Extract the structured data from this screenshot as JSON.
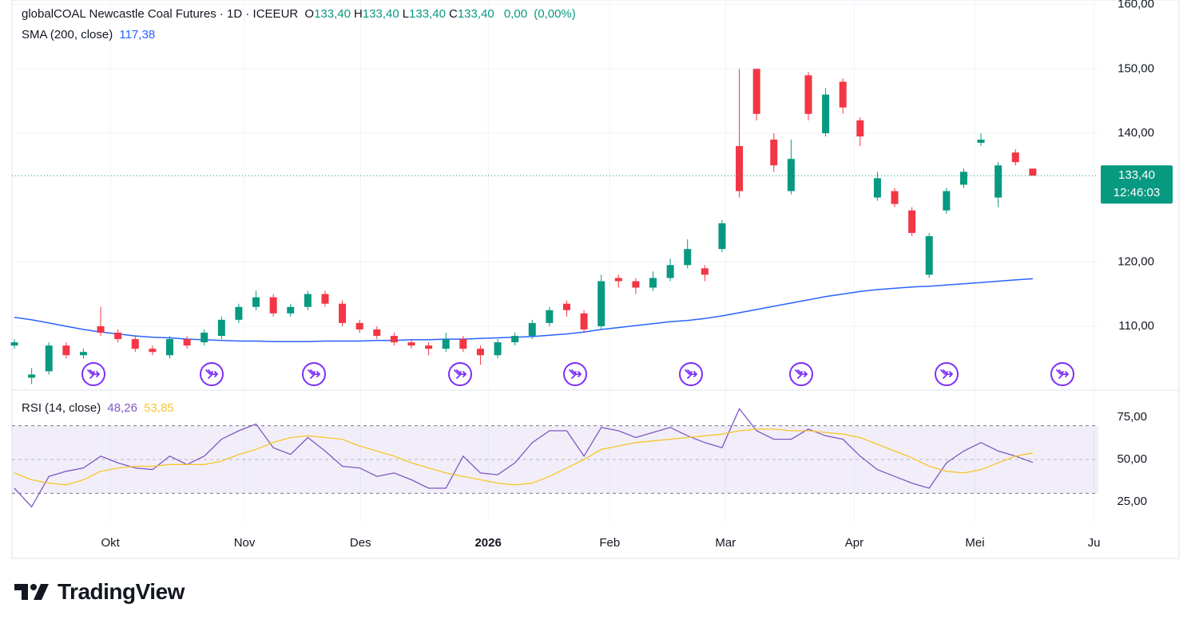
{
  "chart_data": [
    {
      "type": "candlestick",
      "title": "globalCOAL Newcastle Coal Futures · 1D · ICEEUR",
      "ohlc_legend": [
        {
          "key": "O",
          "value": 133.4,
          "label": "133,40"
        },
        {
          "key": "H",
          "value": 133.4,
          "label": "133,40"
        },
        {
          "key": "L",
          "value": 133.4,
          "label": "133,40"
        },
        {
          "key": "C",
          "value": 133.4,
          "label": "133,40"
        }
      ],
      "change": {
        "value": 0,
        "label": "0,00"
      },
      "change_pct": {
        "value": 0,
        "label": "(0,00%)"
      },
      "up_color": "#089981",
      "down_color": "#f23645",
      "open": [
        107,
        102,
        103,
        107,
        105.5,
        110,
        109,
        108,
        106.5,
        105.5,
        108,
        107.5,
        108.5,
        111,
        113,
        114.5,
        112,
        113,
        115,
        113.5,
        110.5,
        109.5,
        108.5,
        107.5,
        107,
        106.5,
        108,
        106.5,
        105.5,
        107.5,
        108.5,
        110.5,
        113.5,
        112,
        110,
        117.5,
        117,
        116,
        117.5,
        119.5,
        119,
        122,
        138,
        150,
        139,
        131,
        149,
        140,
        148,
        142,
        130,
        131,
        128,
        118,
        128,
        132,
        138.5,
        130,
        137,
        134.5
      ],
      "high": [
        108,
        103.5,
        107.5,
        107.5,
        106.5,
        113,
        109.5,
        108.5,
        107,
        108.5,
        108.5,
        109.5,
        111.5,
        113.5,
        115.5,
        115,
        113.5,
        115.5,
        115.5,
        114,
        111,
        110,
        109,
        108,
        107.5,
        109,
        108.5,
        107,
        108,
        109,
        111,
        113,
        114,
        112.5,
        118,
        118,
        117.5,
        118.5,
        120.5,
        123.5,
        119.5,
        126.5,
        150,
        150,
        140,
        139,
        149.5,
        147,
        148.5,
        142.5,
        134,
        131.5,
        128.5,
        124.5,
        131.5,
        134.5,
        140,
        135.5,
        137.5,
        134.5
      ],
      "low": [
        106.5,
        101,
        102.5,
        105,
        105,
        108.5,
        107.5,
        106,
        105.5,
        105,
        106.5,
        107,
        108,
        110.5,
        112.5,
        111.5,
        111.5,
        112.5,
        113,
        110,
        109,
        108,
        107,
        106.5,
        105.5,
        106,
        106,
        104,
        105,
        107,
        108,
        110,
        111.5,
        109,
        109.5,
        116,
        115,
        115.5,
        117,
        119,
        117,
        121.5,
        130,
        142,
        134,
        130.5,
        142,
        139.5,
        143,
        138,
        129.5,
        128.5,
        124,
        117.5,
        127.5,
        131.5,
        138,
        128.5,
        135,
        133.4
      ],
      "close": [
        107.5,
        102.5,
        107,
        105.5,
        106,
        109,
        108,
        106.5,
        106,
        108,
        107,
        109,
        111,
        113,
        114.5,
        112,
        113,
        115,
        113.5,
        110.5,
        109.5,
        108.5,
        107.5,
        107,
        106.5,
        108,
        106.5,
        105.5,
        107.5,
        108.5,
        110.5,
        112.5,
        112.5,
        109.5,
        117,
        117,
        116,
        117.5,
        119.5,
        122,
        118,
        126,
        131,
        143,
        135,
        136,
        143,
        146,
        144,
        139.5,
        133,
        129,
        124.5,
        124,
        131,
        134,
        139,
        135,
        135.5,
        133.4
      ],
      "overlay": {
        "name": "SMA (200, close)",
        "color": "#2962ff",
        "last": {
          "value": 117.38,
          "label": "117,38"
        },
        "values": [
          111.4,
          111,
          110.5,
          110,
          109.5,
          109.1,
          108.8,
          108.5,
          108.3,
          108.2,
          108,
          107.9,
          107.8,
          107.7,
          107.7,
          107.6,
          107.6,
          107.6,
          107.7,
          107.7,
          107.7,
          107.8,
          107.8,
          107.9,
          107.9,
          108,
          108,
          108.1,
          108.2,
          108.3,
          108.4,
          108.6,
          108.8,
          109.1,
          109.5,
          109.8,
          110.1,
          110.4,
          110.7,
          110.9,
          111.2,
          111.6,
          112.1,
          112.6,
          113.1,
          113.6,
          114.1,
          114.6,
          115,
          115.4,
          115.7,
          115.9,
          116.1,
          116.2,
          116.4,
          116.6,
          116.8,
          117,
          117.2,
          117.38
        ]
      },
      "last_price": {
        "value": 133.4,
        "label": "133,40"
      },
      "countdown": "12:46:03",
      "ylim": [
        100.2,
        160.7
      ],
      "yticks": [
        {
          "value": 110,
          "label": "110,00"
        },
        {
          "value": 120,
          "label": "120,00"
        },
        {
          "value": 140,
          "label": "140,00"
        },
        {
          "value": 150,
          "label": "150,00"
        },
        {
          "value": 160,
          "label": "160,00"
        }
      ],
      "xlim": [
        -0.14,
        62.8
      ],
      "xticks": [
        {
          "value": 5.56,
          "label": "Okt"
        },
        {
          "value": 13.33,
          "label": "Nov"
        },
        {
          "value": 20.05,
          "label": "Des"
        },
        {
          "value": 27.45,
          "label": "2026"
        },
        {
          "value": 34.49,
          "label": "Feb"
        },
        {
          "value": 41.2,
          "label": "Mar"
        },
        {
          "value": 48.66,
          "label": "Apr"
        },
        {
          "value": 55.65,
          "label": "Mei"
        },
        {
          "value": 62.55,
          "label": "Ju"
        }
      ],
      "grid": true
    },
    {
      "type": "line",
      "title": "RSI (14, close)",
      "series": [
        {
          "color": "#7e57c2",
          "last": {
            "value": 48.26,
            "label": "48,26"
          },
          "values": [
            33,
            22,
            40,
            43,
            45,
            52,
            48,
            45,
            44,
            52,
            47,
            52,
            62,
            67,
            71,
            57,
            53,
            63,
            55,
            46,
            45,
            40,
            42,
            38,
            33,
            33,
            52,
            42,
            41,
            48,
            60,
            67,
            67,
            52,
            69,
            67,
            63,
            66,
            69,
            64,
            60,
            57,
            80,
            67,
            62,
            62,
            68,
            64,
            62,
            52,
            44,
            40,
            36,
            33,
            48,
            55,
            60,
            55,
            52,
            48.26
          ]
        },
        {
          "color": "#f7c52b",
          "last": {
            "value": 53.85,
            "label": "53,85"
          },
          "values": [
            42,
            38,
            36,
            35,
            38,
            43,
            45,
            46,
            46,
            47,
            47,
            47,
            49,
            53,
            56,
            60,
            63,
            64,
            63,
            62,
            58,
            55,
            52,
            48,
            45,
            42,
            40,
            38,
            36,
            35,
            36,
            40,
            45,
            50,
            56,
            58,
            60,
            61,
            62,
            63,
            64,
            65,
            67,
            68,
            68,
            67,
            67,
            66,
            65,
            63,
            59,
            55,
            51,
            46,
            43,
            42,
            44,
            48,
            52,
            53.85
          ]
        }
      ],
      "band": [
        30,
        70
      ],
      "midline": 50,
      "band_color": "#7e57c2",
      "ylim": [
        12.7,
        90.6
      ],
      "yticks": [
        {
          "value": 25,
          "label": "25,00"
        },
        {
          "value": 50,
          "label": "50,00"
        },
        {
          "value": 75,
          "label": "75,00"
        }
      ]
    }
  ],
  "footer": {
    "brand": "TradingView"
  }
}
